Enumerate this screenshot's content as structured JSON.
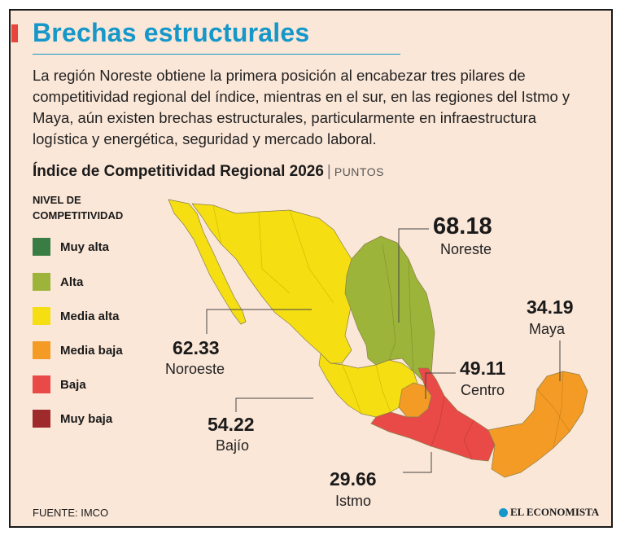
{
  "header": {
    "title": "Brechas estructurales",
    "intro": "La región Noreste obtiene la primera posición al encabezar tres pilares de competitividad regional del índice, mientras en el sur, en las regiones del Istmo y Maya, aún existen brechas estructurales, particularmente en infraestructura logística y energética, seguridad y mercado laboral.",
    "accent_color": "#e8453c",
    "title_color": "#1597c9"
  },
  "chart": {
    "title": "Índice de Competitividad Regional 2026",
    "unit": "PUNTOS"
  },
  "legend": {
    "title_line1": "NIVEL DE",
    "title_line2": "COMPETITIVIDAD",
    "items": [
      {
        "label": "Muy alta",
        "color": "#3a7d44"
      },
      {
        "label": "Alta",
        "color": "#9db43a"
      },
      {
        "label": "Media alta",
        "color": "#f5de12"
      },
      {
        "label": "Media baja",
        "color": "#f39b24"
      },
      {
        "label": "Baja",
        "color": "#e94a48"
      },
      {
        "label": "Muy baja",
        "color": "#9e2a2b"
      }
    ]
  },
  "regions": [
    {
      "name": "Noreste",
      "value": "68.18",
      "level": "Alta"
    },
    {
      "name": "Noroeste",
      "value": "62.33",
      "level": "Media alta"
    },
    {
      "name": "Maya",
      "value": "34.19",
      "level": "Media baja"
    },
    {
      "name": "Centro",
      "value": "49.11",
      "level": "Media baja"
    },
    {
      "name": "Bajío",
      "value": "54.22",
      "level": "Media alta"
    },
    {
      "name": "Istmo",
      "value": "29.66",
      "level": "Baja"
    }
  ],
  "footer": {
    "source": "FUENTE: IMCO",
    "brand": "EL ECONOMISTA"
  }
}
